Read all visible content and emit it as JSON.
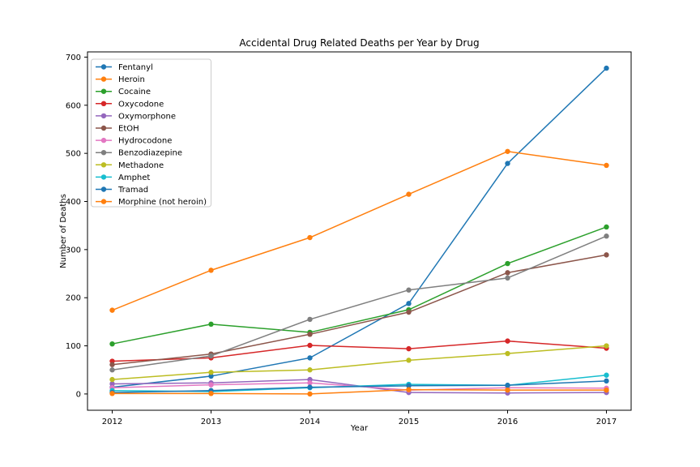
{
  "chart_data": {
    "type": "line",
    "title": "Accidental Drug Related Deaths per Year by Drug",
    "xlabel": "Year",
    "ylabel": "Number of Deaths",
    "x": [
      2012,
      2013,
      2014,
      2015,
      2016,
      2017
    ],
    "xticks": [
      "2012",
      "2013",
      "2014",
      "2015",
      "2016",
      "2017"
    ],
    "yticks": [
      0,
      100,
      200,
      300,
      400,
      500,
      600,
      700
    ],
    "xlim": [
      2011.75,
      2017.25
    ],
    "ylim": [
      -33.85,
      710.85
    ],
    "grid": false,
    "legend_position": "upper left",
    "series": [
      {
        "name": "Fentanyl",
        "color": "#1f77b4",
        "values": [
          14,
          37,
          75,
          188,
          479,
          677
        ]
      },
      {
        "name": "Heroin",
        "color": "#ff7f0e",
        "values": [
          174,
          257,
          325,
          415,
          504,
          475
        ]
      },
      {
        "name": "Cocaine",
        "color": "#2ca02c",
        "values": [
          104,
          145,
          128,
          175,
          271,
          347
        ]
      },
      {
        "name": "Oxycodone",
        "color": "#d62728",
        "values": [
          68,
          75,
          101,
          94,
          110,
          95
        ]
      },
      {
        "name": "Oxymorphone",
        "color": "#9467bd",
        "values": [
          21,
          23,
          30,
          3,
          2,
          3
        ]
      },
      {
        "name": "EtOH",
        "color": "#8c564b",
        "values": [
          61,
          83,
          124,
          170,
          252,
          289
        ]
      },
      {
        "name": "Hydrocodone",
        "color": "#e377c2",
        "values": [
          13,
          19,
          23,
          8,
          13,
          12
        ]
      },
      {
        "name": "Benzodiazepine",
        "color": "#7f7f7f",
        "values": [
          50,
          79,
          155,
          216,
          241,
          328
        ]
      },
      {
        "name": "Methadone",
        "color": "#bcbd22",
        "values": [
          30,
          45,
          50,
          70,
          84,
          100
        ]
      },
      {
        "name": "Amphet",
        "color": "#17becf",
        "values": [
          7,
          5,
          13,
          20,
          18,
          39
        ]
      },
      {
        "name": "Tramad",
        "color": "#1f77b4",
        "values": [
          3,
          7,
          14,
          17,
          18,
          27
        ]
      },
      {
        "name": "Morphine (not heroin)",
        "color": "#ff7f0e",
        "values": [
          1,
          1,
          0,
          9,
          8,
          8
        ]
      }
    ]
  }
}
